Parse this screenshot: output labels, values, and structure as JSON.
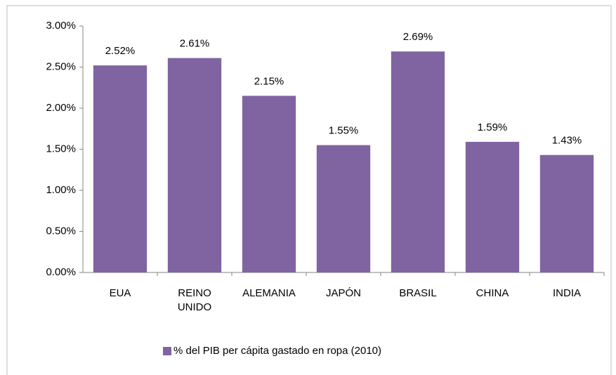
{
  "chart_data": {
    "type": "bar",
    "categories": [
      "EUA",
      "REINO UNIDO",
      "ALEMANIA",
      "JAPÓN",
      "BRASIL",
      "CHINA",
      "INDIA"
    ],
    "series": [
      {
        "name": "% del PIB per cápita gastado en ropa (2010)",
        "color": "#8064a2",
        "values": [
          2.52,
          2.61,
          2.15,
          1.55,
          2.69,
          1.59,
          1.43
        ],
        "value_labels": [
          "2.52%",
          "2.61%",
          "2.15%",
          "1.55%",
          "2.69%",
          "1.59%",
          "1.43%"
        ]
      }
    ],
    "ylim": [
      0,
      3
    ],
    "yticks": [
      {
        "value": 0,
        "label": "0.00%"
      },
      {
        "value": 0.5,
        "label": "0.50%"
      },
      {
        "value": 1,
        "label": "1.00%"
      },
      {
        "value": 1.5,
        "label": "1.50%"
      },
      {
        "value": 2,
        "label": "2.00%"
      },
      {
        "value": 2.5,
        "label": "2.50%"
      },
      {
        "value": 3,
        "label": "3.00%"
      }
    ],
    "grid": false,
    "legend": "bottom"
  }
}
